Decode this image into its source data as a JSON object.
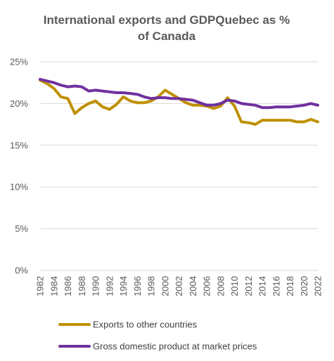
{
  "chart_data": {
    "type": "line",
    "title_lines": [
      "International exports and GDPQuebec as %",
      "of Canada"
    ],
    "x": [
      1982,
      1983,
      1984,
      1985,
      1986,
      1987,
      1988,
      1989,
      1990,
      1991,
      1992,
      1993,
      1994,
      1995,
      1996,
      1997,
      1998,
      1999,
      2000,
      2001,
      2002,
      2003,
      2004,
      2005,
      2006,
      2007,
      2008,
      2009,
      2010,
      2011,
      2012,
      2013,
      2014,
      2015,
      2016,
      2017,
      2018,
      2019,
      2020,
      2021,
      2022
    ],
    "x_tick_labels": [
      "1982",
      "1984",
      "1986",
      "1988",
      "1990",
      "1992",
      "1994",
      "1996",
      "1998",
      "2000",
      "2002",
      "2004",
      "2006",
      "2008",
      "2010",
      "2012",
      "2014",
      "2016",
      "2018",
      "2020",
      "2022"
    ],
    "y_tick_labels": [
      "0%",
      "5%",
      "10%",
      "15%",
      "20%",
      "25%"
    ],
    "ylim": [
      0,
      25
    ],
    "grid": true,
    "legend_position": "bottom",
    "series": [
      {
        "name": "Exports to other countries",
        "color": "#bf9000",
        "values": [
          22.8,
          22.4,
          21.8,
          20.8,
          20.6,
          18.8,
          19.5,
          20.0,
          20.3,
          19.6,
          19.3,
          19.9,
          20.8,
          20.3,
          20.1,
          20.1,
          20.3,
          20.8,
          21.6,
          21.1,
          20.6,
          20.1,
          19.8,
          19.8,
          19.7,
          19.4,
          19.7,
          20.7,
          19.7,
          17.8,
          17.7,
          17.5,
          18.0,
          18.0,
          18.0,
          18.0,
          18.0,
          17.8,
          17.8,
          18.1,
          17.8
        ]
      },
      {
        "name": "Gross domestic product at market prices",
        "color": "#7030a0",
        "values": [
          22.9,
          22.7,
          22.5,
          22.2,
          22.0,
          22.1,
          22.0,
          21.5,
          21.6,
          21.5,
          21.4,
          21.3,
          21.3,
          21.2,
          21.1,
          20.8,
          20.6,
          20.7,
          20.7,
          20.6,
          20.6,
          20.5,
          20.4,
          20.1,
          19.8,
          19.8,
          20.0,
          20.4,
          20.3,
          20.0,
          19.9,
          19.8,
          19.5,
          19.5,
          19.6,
          19.6,
          19.6,
          19.7,
          19.8,
          20.0,
          19.8
        ]
      }
    ]
  }
}
